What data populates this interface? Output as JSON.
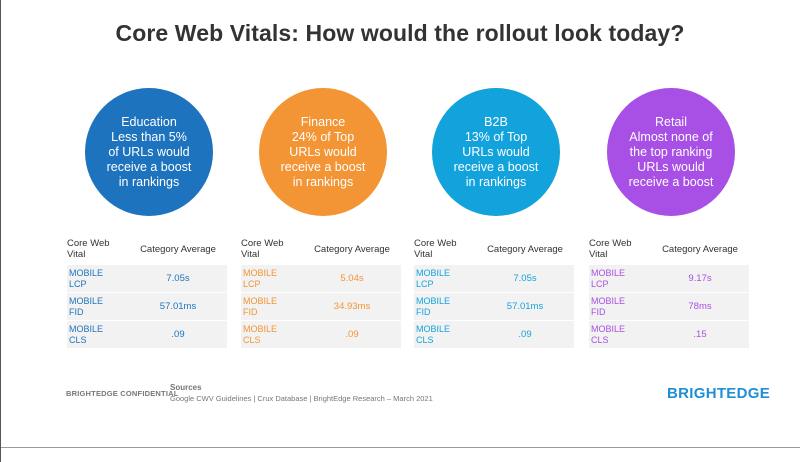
{
  "title": "Core Web Vitals: How would the rollout look today?",
  "header_labels": {
    "col1_line1": "Core Web",
    "col1_line2": "Vital",
    "col2": "Category Average"
  },
  "segments": [
    {
      "color": "#1e73be",
      "circle_lines": [
        "Education",
        "Less than 5%",
        "of URLs would",
        "receive a boost",
        "in rankings"
      ],
      "rows": [
        {
          "l1": "MOBILE",
          "l2": "LCP",
          "value": "7.05s"
        },
        {
          "l1": "MOBILE",
          "l2": "FID",
          "value": "57.01ms"
        },
        {
          "l1": "MOBILE",
          "l2": "CLS",
          "value": ".09"
        }
      ]
    },
    {
      "color": "#f39534",
      "circle_lines": [
        "Finance",
        "24% of Top",
        "URLs would",
        "receive a boost",
        "in rankings"
      ],
      "rows": [
        {
          "l1": "MOBILE",
          "l2": "LCP",
          "value": "5.04s"
        },
        {
          "l1": "MOBILE",
          "l2": "FID",
          "value": "34.93ms"
        },
        {
          "l1": "MOBILE",
          "l2": "CLS",
          "value": ".09"
        }
      ]
    },
    {
      "color": "#13a3dc",
      "circle_lines": [
        "B2B",
        "13% of Top",
        "URLs would",
        "receive a boost",
        "in rankings"
      ],
      "rows": [
        {
          "l1": "MOBILE",
          "l2": "LCP",
          "value": "7.05s"
        },
        {
          "l1": "MOBILE",
          "l2": "FID",
          "value": "57.01ms"
        },
        {
          "l1": "MOBILE",
          "l2": "CLS",
          "value": ".09"
        }
      ]
    },
    {
      "color": "#a84fe6",
      "circle_lines": [
        "Retail",
        "Almost none of",
        "the top ranking",
        "URLs would",
        "receive a boost"
      ],
      "rows": [
        {
          "l1": "MOBILE",
          "l2": "LCP",
          "value": "9.17s"
        },
        {
          "l1": "MOBILE",
          "l2": "FID",
          "value": "78ms"
        },
        {
          "l1": "MOBILE",
          "l2": "CLS",
          "value": ".15"
        }
      ]
    }
  ],
  "footer": {
    "confidential": "BRIGHTEDGE CONFIDENTIAL",
    "sources_title": "Sources",
    "sources_text": "Google CWV Guidelines  | Crux Database  | BrightEdge Research – March 2021",
    "brand": "BRIGHTEDGE"
  }
}
